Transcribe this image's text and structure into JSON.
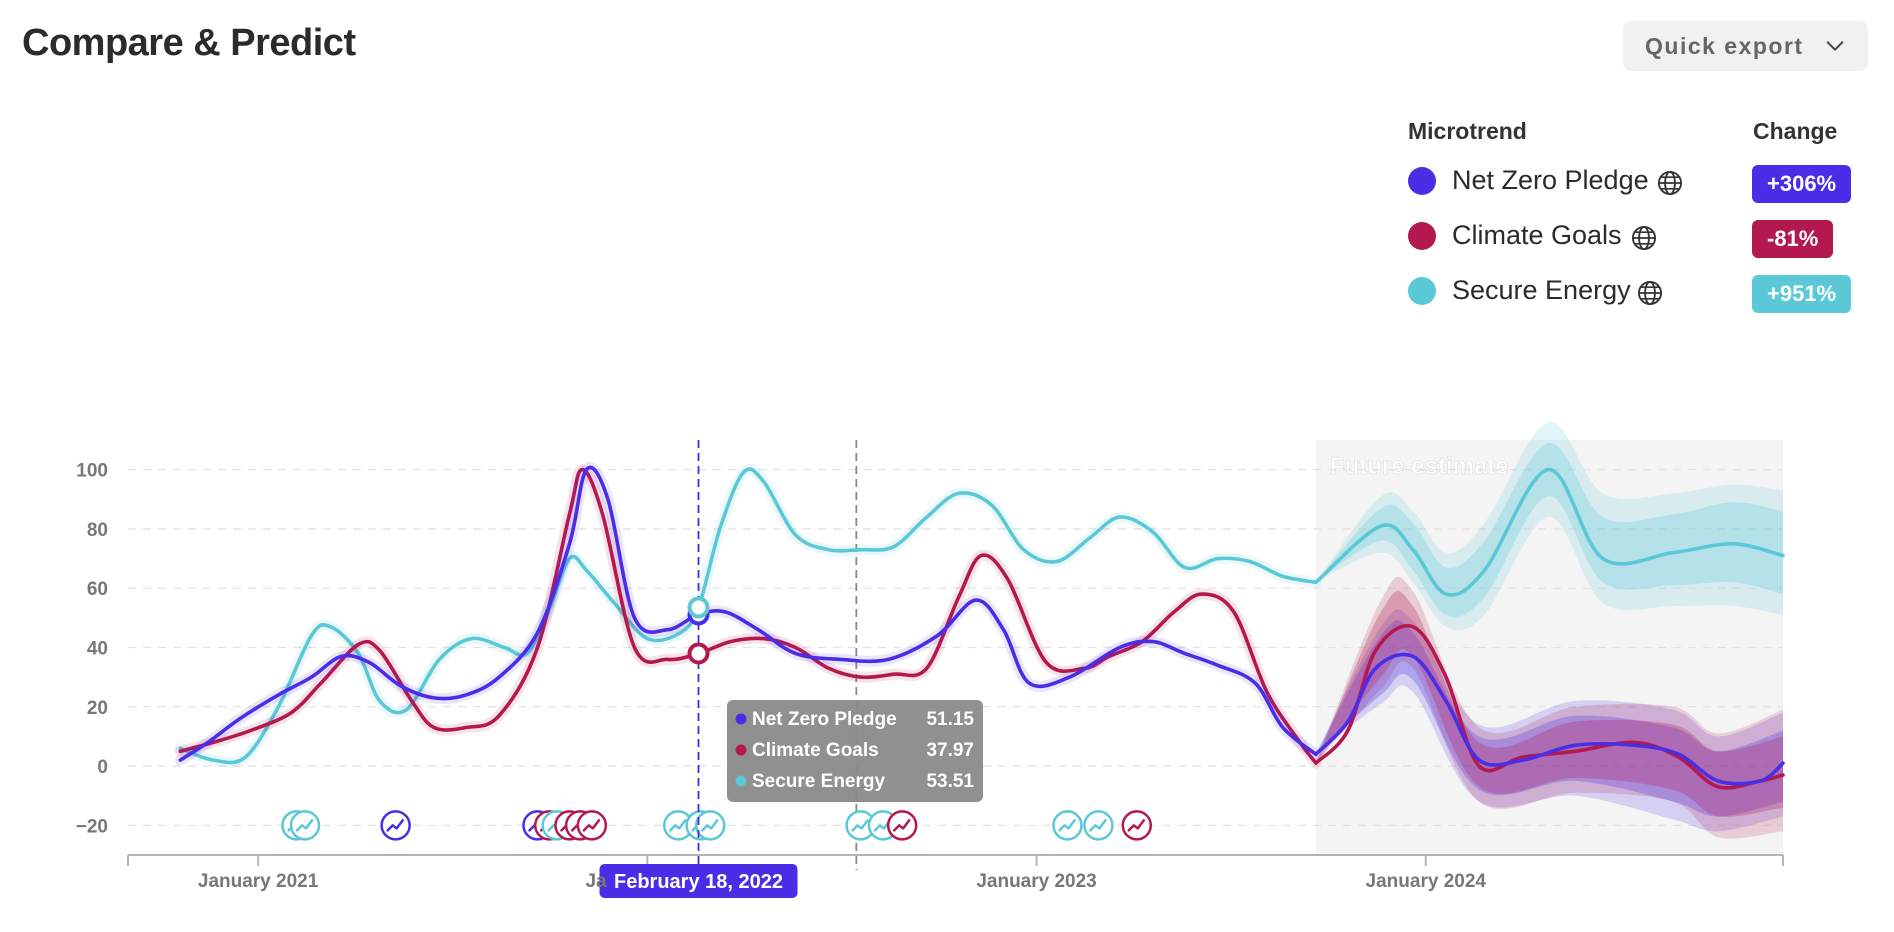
{
  "header": {
    "title": "Compare & Predict",
    "export_label": "Quick export"
  },
  "legend": {
    "col_microtrend": "Microtrend",
    "col_change": "Change",
    "items": [
      {
        "name": "Net Zero Pledge",
        "change": "+306%",
        "color": "#4a2de6"
      },
      {
        "name": "Climate Goals",
        "change": "-81%",
        "color": "#b3194f"
      },
      {
        "name": "Secure Energy",
        "change": "+951%",
        "color": "#5ac8d6"
      }
    ]
  },
  "chart_data": {
    "type": "line",
    "y_ticks": [
      100,
      80,
      60,
      40,
      20,
      0,
      -20
    ],
    "ylim": [
      -30,
      110
    ],
    "x_range": [
      "2020-09-01",
      "2024-12-01"
    ],
    "x_tick_labels": [
      {
        "label": "January 2021",
        "date": "2021-01-01"
      },
      {
        "label": "January 2023",
        "date": "2023-01-01"
      },
      {
        "label": "January 2024",
        "date": "2024-01-01"
      }
    ],
    "future_label": "Future estimate",
    "future_start": "2023-09-20",
    "marker_line_date": "2022-07-16",
    "hover": {
      "date_label": "February 18, 2022",
      "date": "2022-02-18",
      "rows": [
        {
          "name": "Net Zero Pledge",
          "value": "51.15"
        },
        {
          "name": "Climate Goals",
          "value": "37.97"
        },
        {
          "name": "Secure Energy",
          "value": "53.51"
        }
      ]
    },
    "series": [
      {
        "name": "Net Zero Pledge",
        "color": "#4a2de6",
        "points": [
          [
            "2020-10-20",
            2
          ],
          [
            "2020-11-15",
            8
          ],
          [
            "2020-12-15",
            16
          ],
          [
            "2021-01-20",
            24
          ],
          [
            "2021-02-20",
            30
          ],
          [
            "2021-03-20",
            37
          ],
          [
            "2021-04-15",
            35
          ],
          [
            "2021-05-15",
            27
          ],
          [
            "2021-06-15",
            23
          ],
          [
            "2021-07-15",
            24
          ],
          [
            "2021-08-15",
            30
          ],
          [
            "2021-09-20",
            45
          ],
          [
            "2021-10-20",
            75
          ],
          [
            "2021-11-05",
            100
          ],
          [
            "2021-11-25",
            90
          ],
          [
            "2021-12-20",
            50
          ],
          [
            "2022-01-20",
            46
          ],
          [
            "2022-02-18",
            51.15
          ],
          [
            "2022-03-15",
            52
          ],
          [
            "2022-04-15",
            46
          ],
          [
            "2022-05-20",
            38
          ],
          [
            "2022-07-01",
            36
          ],
          [
            "2022-08-15",
            36
          ],
          [
            "2022-09-30",
            44
          ],
          [
            "2022-11-05",
            56
          ],
          [
            "2022-12-01",
            46
          ],
          [
            "2022-12-25",
            28
          ],
          [
            "2023-02-01",
            30
          ],
          [
            "2023-03-20",
            40
          ],
          [
            "2023-04-20",
            42
          ],
          [
            "2023-05-20",
            38
          ],
          [
            "2023-06-20",
            34
          ],
          [
            "2023-07-25",
            28
          ],
          [
            "2023-08-20",
            13
          ],
          [
            "2023-09-20",
            4
          ]
        ],
        "forecast": [
          [
            "2023-09-20",
            4
          ],
          [
            "2023-10-20",
            15
          ],
          [
            "2023-11-15",
            33
          ],
          [
            "2023-12-20",
            37
          ],
          [
            "2024-01-20",
            22
          ],
          [
            "2024-02-20",
            2
          ],
          [
            "2024-04-01",
            2
          ],
          [
            "2024-05-20",
            7
          ],
          [
            "2024-07-15",
            7
          ],
          [
            "2024-08-25",
            4
          ],
          [
            "2024-10-01",
            -5
          ],
          [
            "2024-11-10",
            -5
          ],
          [
            "2024-12-01",
            1
          ]
        ],
        "band1": [
          [
            "2023-09-20",
            4,
            4
          ],
          [
            "2023-11-20",
            44,
            24
          ],
          [
            "2023-12-20",
            45,
            29
          ],
          [
            "2024-02-20",
            10,
            -8
          ],
          [
            "2024-05-20",
            17,
            -5
          ],
          [
            "2024-08-20",
            13,
            -12
          ],
          [
            "2024-10-01",
            5,
            -17
          ],
          [
            "2024-12-01",
            12,
            -12
          ]
        ],
        "band2": [
          [
            "2023-09-20",
            4,
            4
          ],
          [
            "2023-11-20",
            47,
            21
          ],
          [
            "2023-12-20",
            49,
            25
          ],
          [
            "2024-02-20",
            14,
            -12
          ],
          [
            "2024-05-20",
            22,
            -10
          ],
          [
            "2024-08-20",
            19,
            -18
          ],
          [
            "2024-10-01",
            10,
            -22
          ],
          [
            "2024-12-01",
            18,
            -17
          ]
        ]
      },
      {
        "name": "Climate Goals",
        "color": "#b3194f",
        "points": [
          [
            "2020-10-20",
            5
          ],
          [
            "2020-11-20",
            8
          ],
          [
            "2020-12-25",
            12
          ],
          [
            "2021-02-01",
            18
          ],
          [
            "2021-03-01",
            28
          ],
          [
            "2021-04-05",
            41
          ],
          [
            "2021-04-25",
            39
          ],
          [
            "2021-05-25",
            22
          ],
          [
            "2021-06-15",
            13
          ],
          [
            "2021-07-15",
            13
          ],
          [
            "2021-08-15",
            17
          ],
          [
            "2021-09-20",
            40
          ],
          [
            "2021-10-20",
            85
          ],
          [
            "2021-11-01",
            100
          ],
          [
            "2021-11-20",
            85
          ],
          [
            "2021-12-20",
            40
          ],
          [
            "2022-01-20",
            36
          ],
          [
            "2022-02-18",
            37.97
          ],
          [
            "2022-03-20",
            42
          ],
          [
            "2022-04-20",
            43
          ],
          [
            "2022-05-20",
            40
          ],
          [
            "2022-06-20",
            33
          ],
          [
            "2022-07-20",
            30
          ],
          [
            "2022-08-20",
            31
          ],
          [
            "2022-09-20",
            33
          ],
          [
            "2022-10-20",
            57
          ],
          [
            "2022-11-10",
            71
          ],
          [
            "2022-12-05",
            63
          ],
          [
            "2023-01-10",
            35
          ],
          [
            "2023-02-15",
            33
          ],
          [
            "2023-03-10",
            37
          ],
          [
            "2023-04-10",
            42
          ],
          [
            "2023-05-10",
            52
          ],
          [
            "2023-06-05",
            58
          ],
          [
            "2023-07-05",
            52
          ],
          [
            "2023-08-05",
            25
          ],
          [
            "2023-09-05",
            8
          ],
          [
            "2023-09-20",
            1
          ]
        ],
        "forecast": [
          [
            "2023-09-20",
            1
          ],
          [
            "2023-10-20",
            12
          ],
          [
            "2023-11-15",
            39
          ],
          [
            "2023-12-20",
            47
          ],
          [
            "2024-01-20",
            30
          ],
          [
            "2024-02-20",
            0
          ],
          [
            "2024-04-01",
            3
          ],
          [
            "2024-05-20",
            5
          ],
          [
            "2024-07-15",
            8
          ],
          [
            "2024-08-25",
            3
          ],
          [
            "2024-10-01",
            -7
          ],
          [
            "2024-11-10",
            -5
          ],
          [
            "2024-12-01",
            -3
          ]
        ],
        "band1": [
          [
            "2023-09-20",
            1,
            1
          ],
          [
            "2023-11-20",
            52,
            30
          ],
          [
            "2023-12-20",
            54,
            37
          ],
          [
            "2024-02-20",
            8,
            -7
          ],
          [
            "2024-05-20",
            15,
            -4
          ],
          [
            "2024-08-20",
            14,
            -8
          ],
          [
            "2024-10-01",
            5,
            -17
          ],
          [
            "2024-12-01",
            10,
            -14
          ]
        ],
        "band2": [
          [
            "2023-09-20",
            1,
            1
          ],
          [
            "2023-11-20",
            56,
            26
          ],
          [
            "2023-12-20",
            59,
            33
          ],
          [
            "2024-02-20",
            13,
            -12
          ],
          [
            "2024-05-20",
            20,
            -9
          ],
          [
            "2024-08-20",
            20,
            -12
          ],
          [
            "2024-10-01",
            11,
            -24
          ],
          [
            "2024-12-01",
            19,
            -22
          ]
        ]
      },
      {
        "name": "Secure Energy",
        "color": "#5ac8d6",
        "points": [
          [
            "2020-10-20",
            6
          ],
          [
            "2020-11-20",
            2
          ],
          [
            "2020-12-20",
            3
          ],
          [
            "2021-01-20",
            20
          ],
          [
            "2021-02-20",
            44
          ],
          [
            "2021-03-10",
            47
          ],
          [
            "2021-04-05",
            38
          ],
          [
            "2021-04-25",
            22
          ],
          [
            "2021-05-20",
            19
          ],
          [
            "2021-06-20",
            36
          ],
          [
            "2021-07-20",
            43
          ],
          [
            "2021-08-20",
            40
          ],
          [
            "2021-09-10",
            38
          ],
          [
            "2021-09-30",
            52
          ],
          [
            "2021-10-20",
            70
          ],
          [
            "2021-11-05",
            66
          ],
          [
            "2021-12-01",
            55
          ],
          [
            "2022-01-01",
            43
          ],
          [
            "2022-02-01",
            45
          ],
          [
            "2022-02-18",
            53.51
          ],
          [
            "2022-03-10",
            80
          ],
          [
            "2022-04-01",
            99
          ],
          [
            "2022-04-20",
            96
          ],
          [
            "2022-05-20",
            78
          ],
          [
            "2022-06-20",
            73
          ],
          [
            "2022-07-20",
            73
          ],
          [
            "2022-08-20",
            74
          ],
          [
            "2022-09-20",
            84
          ],
          [
            "2022-10-20",
            92
          ],
          [
            "2022-11-20",
            88
          ],
          [
            "2022-12-20",
            73
          ],
          [
            "2023-01-20",
            69
          ],
          [
            "2023-02-20",
            77
          ],
          [
            "2023-03-20",
            84
          ],
          [
            "2023-04-20",
            79
          ],
          [
            "2023-05-20",
            67
          ],
          [
            "2023-06-20",
            70
          ],
          [
            "2023-07-20",
            69
          ],
          [
            "2023-08-20",
            64
          ],
          [
            "2023-09-20",
            62
          ]
        ],
        "forecast": [
          [
            "2023-09-20",
            62
          ],
          [
            "2023-11-20",
            81
          ],
          [
            "2023-12-20",
            73
          ],
          [
            "2024-01-20",
            58
          ],
          [
            "2024-02-25",
            66
          ],
          [
            "2024-04-25",
            100
          ],
          [
            "2024-06-15",
            70
          ],
          [
            "2024-08-20",
            72
          ],
          [
            "2024-10-15",
            75
          ],
          [
            "2024-12-01",
            71
          ]
        ],
        "band1": [
          [
            "2023-09-20",
            62,
            62
          ],
          [
            "2023-11-20",
            87,
            76
          ],
          [
            "2023-12-20",
            82,
            66
          ],
          [
            "2024-01-20",
            67,
            51
          ],
          [
            "2024-02-25",
            76,
            57
          ],
          [
            "2024-04-25",
            109,
            91
          ],
          [
            "2024-06-15",
            84,
            62
          ],
          [
            "2024-08-20",
            85,
            61
          ],
          [
            "2024-10-15",
            89,
            62
          ],
          [
            "2024-12-01",
            86,
            58
          ]
        ],
        "band2": [
          [
            "2023-09-20",
            62,
            62
          ],
          [
            "2023-11-20",
            91,
            72
          ],
          [
            "2023-12-20",
            86,
            62
          ],
          [
            "2024-01-20",
            72,
            47
          ],
          [
            "2024-02-25",
            82,
            51
          ],
          [
            "2024-04-25",
            116,
            84
          ],
          [
            "2024-06-15",
            92,
            55
          ],
          [
            "2024-08-20",
            92,
            54
          ],
          [
            "2024-10-15",
            95,
            54
          ],
          [
            "2024-12-01",
            93,
            51
          ]
        ]
      }
    ],
    "event_markers": [
      {
        "date": "2021-02-06",
        "color": "#5ac8d6"
      },
      {
        "date": "2021-02-14",
        "color": "#5ac8d6"
      },
      {
        "date": "2021-05-10",
        "color": "#4a2de6"
      },
      {
        "date": "2021-09-20",
        "color": "#4a2de6"
      },
      {
        "date": "2021-10-01",
        "color": "#b3194f"
      },
      {
        "date": "2021-10-08",
        "color": "#5ac8d6"
      },
      {
        "date": "2021-10-20",
        "color": "#b3194f"
      },
      {
        "date": "2021-10-30",
        "color": "#b3194f"
      },
      {
        "date": "2021-11-10",
        "color": "#b3194f"
      },
      {
        "date": "2022-01-30",
        "color": "#5ac8d6"
      },
      {
        "date": "2022-02-20",
        "color": "#5ac8d6"
      },
      {
        "date": "2022-03-01",
        "color": "#5ac8d6"
      },
      {
        "date": "2022-07-20",
        "color": "#5ac8d6"
      },
      {
        "date": "2022-08-10",
        "color": "#5ac8d6"
      },
      {
        "date": "2022-08-28",
        "color": "#b3194f"
      },
      {
        "date": "2023-01-30",
        "color": "#5ac8d6"
      },
      {
        "date": "2023-02-28",
        "color": "#5ac8d6"
      },
      {
        "date": "2023-04-05",
        "color": "#b3194f"
      }
    ]
  }
}
